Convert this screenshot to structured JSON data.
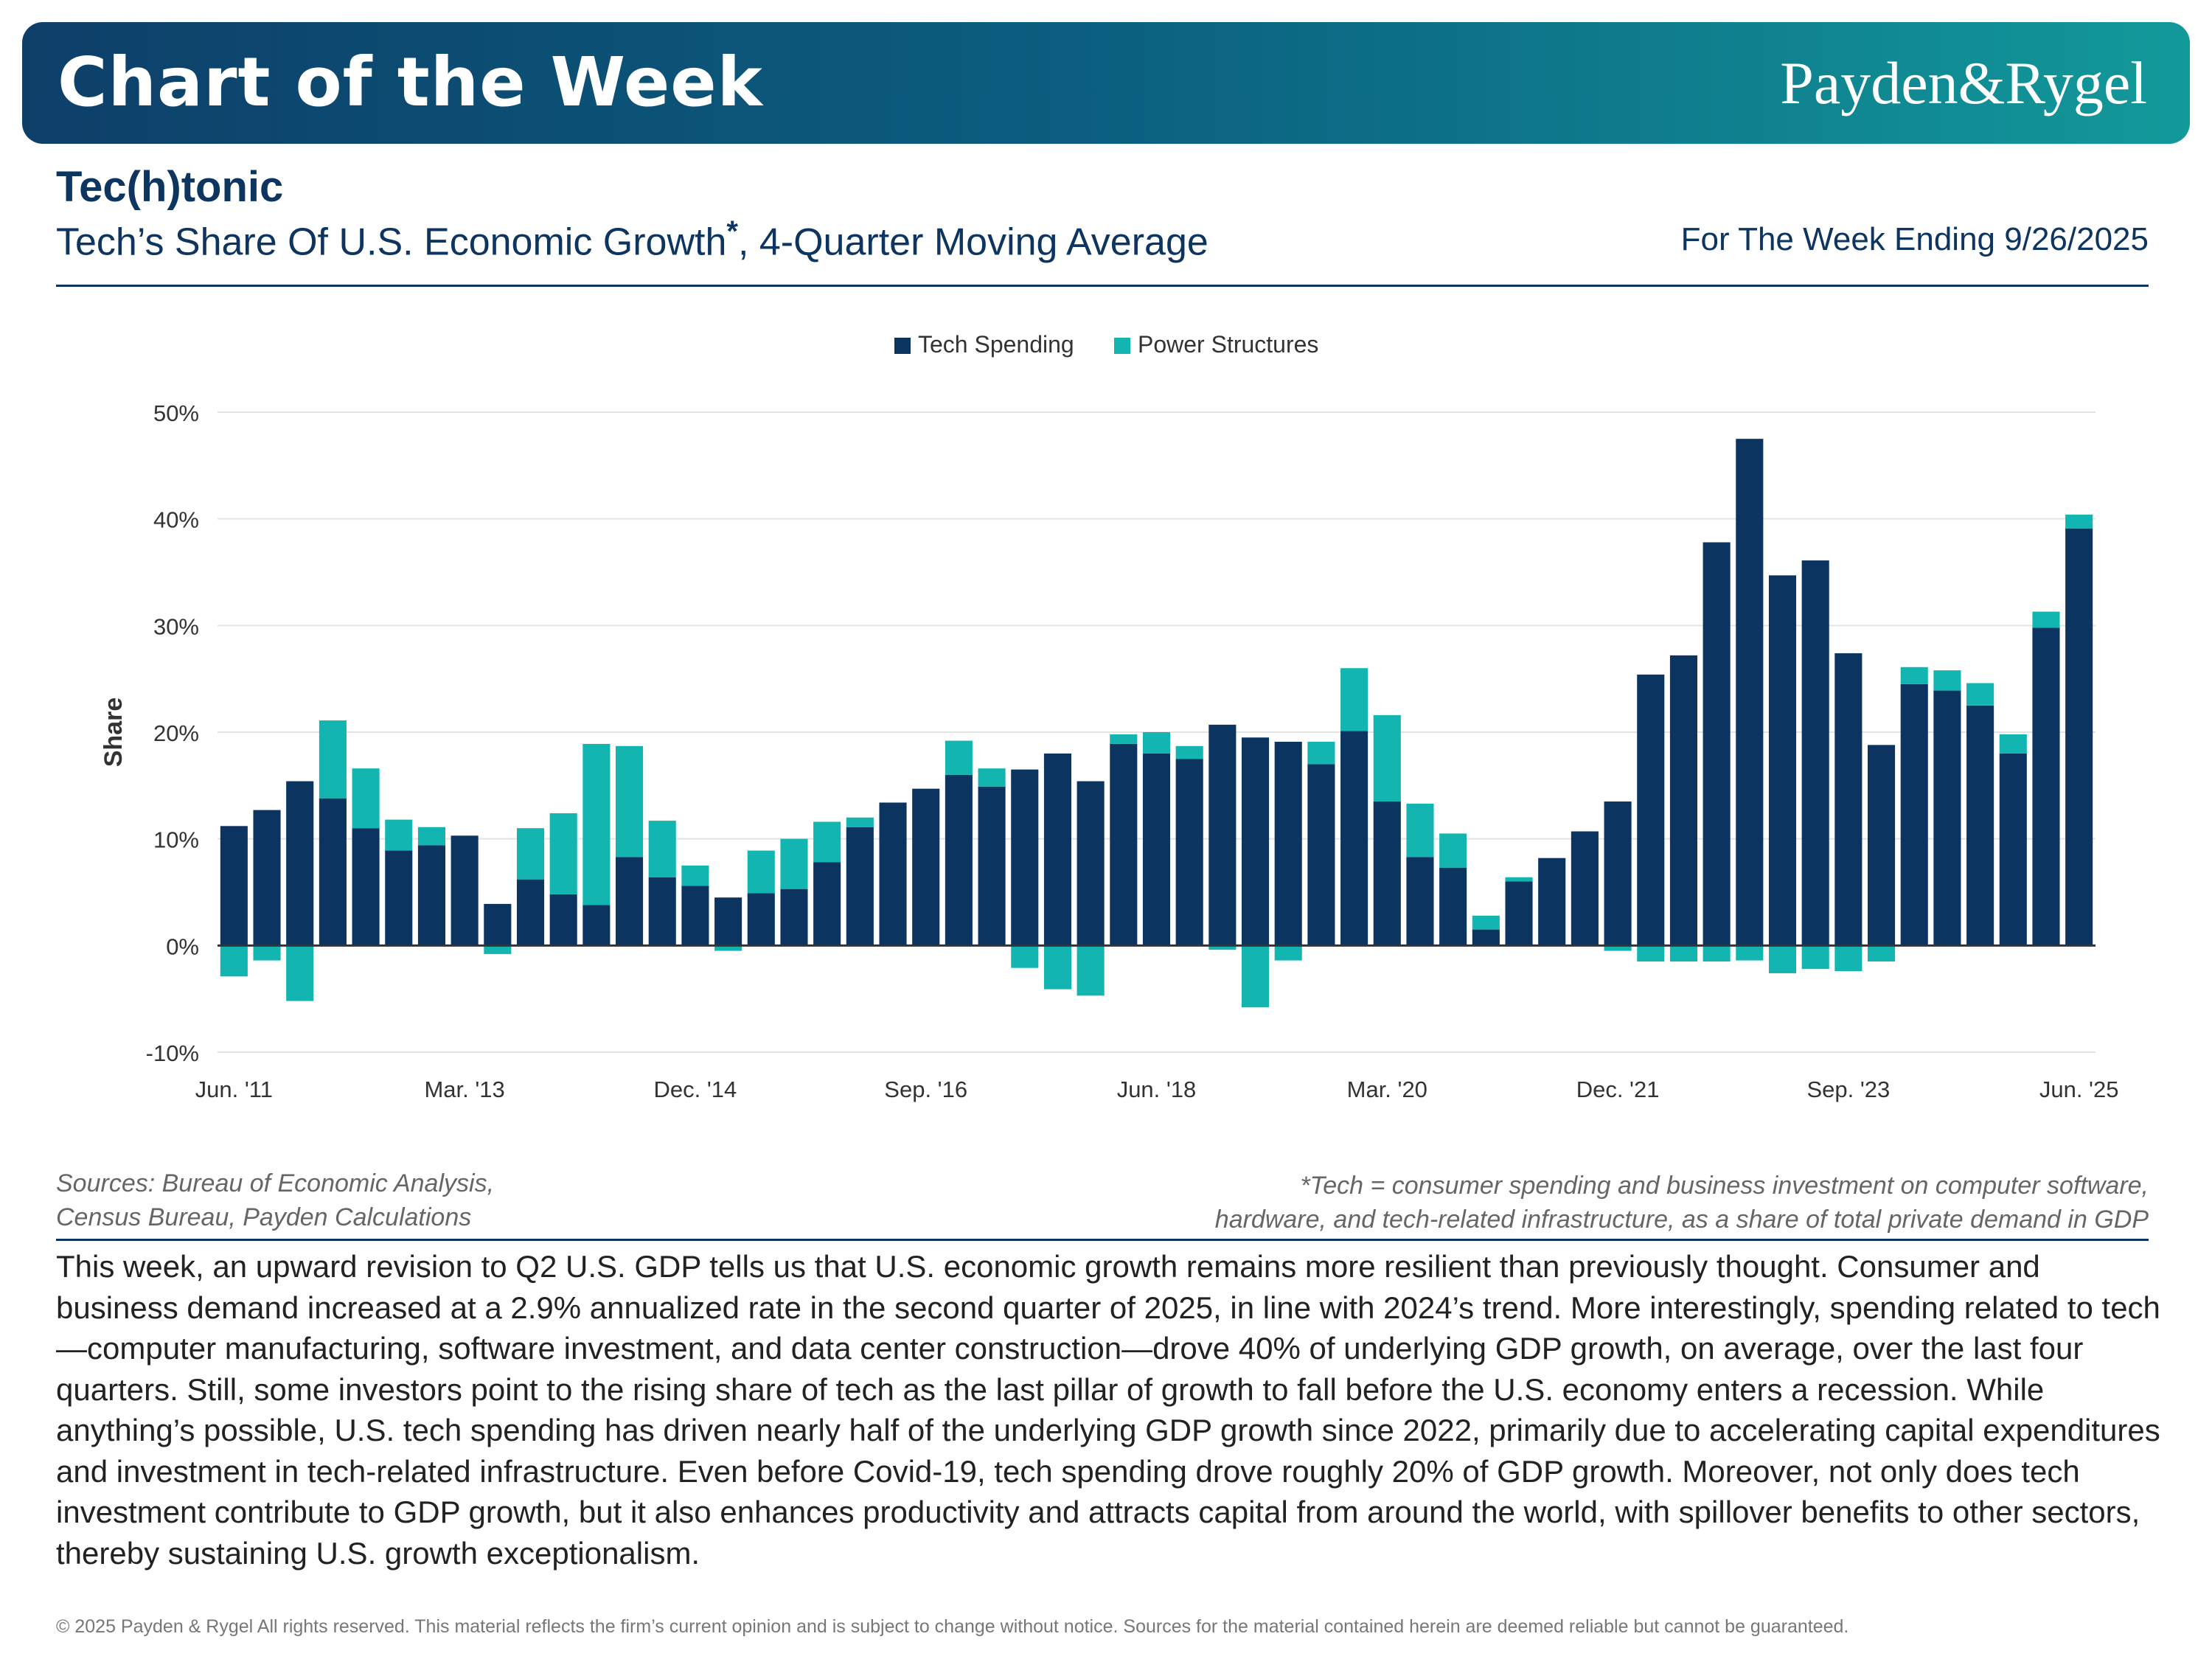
{
  "header": {
    "banner_title": "Chart of the Week",
    "logo_text": "Payden&Rygel",
    "headline": "Tec(h)tonic",
    "subtitle_main": "Tech’s Share Of U.S. Economic Growth",
    "subtitle_asterisk": "*",
    "subtitle_rest": ", 4-Quarter Moving Average",
    "week_ending": "For The Week Ending 9/26/2025"
  },
  "colors": {
    "banner_start": "#0d3f69",
    "banner_end": "#12999a",
    "tech_spending": "#0b3461",
    "power_structures": "#13b5b1"
  },
  "chart_data": {
    "type": "bar",
    "stacked": true,
    "ylabel": "Share",
    "ylim": [
      -10,
      50
    ],
    "yticks": [
      -10,
      0,
      10,
      20,
      30,
      40,
      50
    ],
    "ytick_labels": [
      "-10%",
      "0%",
      "10%",
      "20%",
      "30%",
      "40%",
      "50%"
    ],
    "xtick_labels": [
      {
        "index": 0,
        "label": "Jun. '11"
      },
      {
        "index": 7,
        "label": "Mar. '13"
      },
      {
        "index": 14,
        "label": "Dec. '14"
      },
      {
        "index": 21,
        "label": "Sep. '16"
      },
      {
        "index": 28,
        "label": "Jun. '18"
      },
      {
        "index": 35,
        "label": "Mar. '20"
      },
      {
        "index": 42,
        "label": "Dec. '21"
      },
      {
        "index": 49,
        "label": "Sep. '23"
      },
      {
        "index": 56,
        "label": "Jun. '25"
      }
    ],
    "legend_position": "top-center",
    "grid": true,
    "series": [
      {
        "name": "Tech Spending",
        "color": "#0b3461",
        "values": [
          11.2,
          12.7,
          15.4,
          13.8,
          11.0,
          8.9,
          9.4,
          10.3,
          3.9,
          6.2,
          4.8,
          3.8,
          8.3,
          6.4,
          5.6,
          4.5,
          4.9,
          5.3,
          7.8,
          11.1,
          13.4,
          14.7,
          16.0,
          14.9,
          16.5,
          18.0,
          15.4,
          18.9,
          18.0,
          17.5,
          20.7,
          19.5,
          19.1,
          17.0,
          20.1,
          13.5,
          8.3,
          7.3,
          1.5,
          6.0,
          8.2,
          10.7,
          13.5,
          25.4,
          27.2,
          37.8,
          47.5,
          34.7,
          36.1,
          27.4,
          18.8,
          24.5,
          23.9,
          22.5,
          18.0,
          29.8,
          39.1
        ]
      },
      {
        "name": "Power Structures",
        "color": "#13b5b1",
        "values": [
          -2.9,
          -1.4,
          -5.2,
          7.3,
          5.6,
          2.9,
          1.7,
          0,
          -0.8,
          4.8,
          7.6,
          15.1,
          10.4,
          5.3,
          1.9,
          -0.5,
          4.0,
          4.7,
          3.8,
          0.9,
          0,
          0,
          3.2,
          1.7,
          -2.1,
          -4.1,
          -4.7,
          0.9,
          2.0,
          1.2,
          -0.4,
          -5.8,
          -1.4,
          2.1,
          5.9,
          8.1,
          5.0,
          3.2,
          1.3,
          0.4,
          0,
          0,
          -0.5,
          -1.5,
          -1.5,
          -1.5,
          -1.4,
          -2.6,
          -2.2,
          -2.4,
          -1.5,
          1.6,
          1.9,
          2.1,
          1.8,
          1.5,
          1.3
        ]
      }
    ]
  },
  "notes": {
    "sources_line1": "Sources: Bureau of Economic Analysis,",
    "sources_line2": "Census Bureau, Payden Calculations",
    "footnote_line1": "*Tech = consumer spending and business investment on computer software,",
    "footnote_line2": "hardware, and tech-related infrastructure, as a share of total private demand in GDP"
  },
  "body": "This week, an upward revision to Q2 U.S. GDP tells us that U.S. economic growth remains more resilient than previously thought. Consumer and business demand increased at a 2.9% annualized rate in the second quarter of 2025, in line with 2024’s trend. More interestingly, spending related to tech—computer manufacturing, software investment, and data center construction—drove 40% of underlying GDP growth, on average, over the last four quarters. Still, some investors point to the rising share of tech as the last pillar of growth to fall before the U.S. economy enters a recession. While anything’s possible, U.S. tech spending has driven nearly half of the underlying GDP growth since 2022, primarily due to accelerating capital expenditures and investment in tech-related infrastructure. Even before Covid-19, tech spending drove roughly 20% of GDP growth. Moreover, not only does tech investment contribute to GDP growth, but it also enhances productivity and attracts capital from around the world, with spillover benefits to other sectors, thereby sustaining U.S. growth exceptionalism.",
  "footer": {
    "copyright": "© 2025 Payden & Rygel All rights reserved. This material reflects the firm’s current opinion and is subject to change without notice. Sources for the material contained herein are deemed reliable but cannot be guaranteed."
  }
}
